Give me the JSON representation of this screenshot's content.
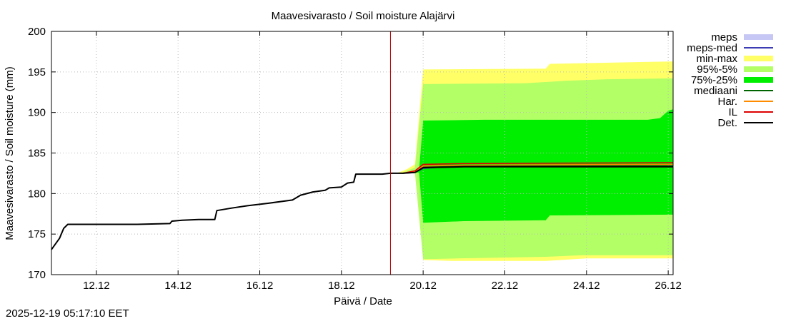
{
  "chart_data": {
    "type": "area",
    "title": "Maavesivarasto / Soil moisture   Alajärvi",
    "xlabel": "Päivä / Date",
    "ylabel": "Maavesivarasto / Soil moisture (mm)",
    "xlim": [
      10.9,
      26.12
    ],
    "ylim": [
      170,
      200
    ],
    "grid": true,
    "x_unit": "day of December 2025",
    "x_ticks": [
      {
        "x": 12,
        "label": "12.12"
      },
      {
        "x": 14,
        "label": "14.12"
      },
      {
        "x": 16,
        "label": "16.12"
      },
      {
        "x": 18,
        "label": "18.12"
      },
      {
        "x": 20,
        "label": "20.12"
      },
      {
        "x": 22,
        "label": "22.12"
      },
      {
        "x": 24,
        "label": "24.12"
      },
      {
        "x": 26,
        "label": "26.12"
      }
    ],
    "y_ticks": [
      170,
      175,
      180,
      185,
      190,
      195,
      200
    ],
    "current_time_marker_x": 19.2,
    "legend": [
      {
        "label": "meps",
        "color": "#c7c7f5",
        "style": "box"
      },
      {
        "label": "meps-med",
        "color": "#3c3cb4",
        "style": "line"
      },
      {
        "label": "min-max",
        "color": "#ffff66",
        "style": "box"
      },
      {
        "label": "95%-5%",
        "color": "#b2ff66",
        "style": "box"
      },
      {
        "label": "75%-25%",
        "color": "#00ee00",
        "style": "box"
      },
      {
        "label": "mediaani",
        "color": "#006400",
        "style": "line"
      },
      {
        "label": "Har.",
        "color": "#ff8c00",
        "style": "line"
      },
      {
        "label": "IL",
        "color": "#dd0000",
        "style": "line"
      },
      {
        "label": "Det.",
        "color": "#000000",
        "style": "line"
      }
    ],
    "series": [
      {
        "name": "Det.",
        "color": "#000000",
        "points": [
          [
            10.9,
            173.1
          ],
          [
            11.1,
            174.5
          ],
          [
            11.2,
            175.7
          ],
          [
            11.3,
            176.2
          ],
          [
            12.0,
            176.2
          ],
          [
            13.0,
            176.2
          ],
          [
            13.8,
            176.3
          ],
          [
            13.85,
            176.6
          ],
          [
            14.1,
            176.7
          ],
          [
            14.5,
            176.8
          ],
          [
            14.9,
            176.8
          ],
          [
            14.95,
            177.9
          ],
          [
            15.3,
            178.2
          ],
          [
            15.7,
            178.5
          ],
          [
            16.2,
            178.8
          ],
          [
            16.8,
            179.2
          ],
          [
            17.0,
            179.8
          ],
          [
            17.3,
            180.2
          ],
          [
            17.6,
            180.4
          ],
          [
            17.7,
            180.7
          ],
          [
            18.0,
            180.8
          ],
          [
            18.15,
            181.3
          ],
          [
            18.3,
            181.4
          ],
          [
            18.35,
            182.4
          ],
          [
            19.0,
            182.4
          ],
          [
            19.2,
            182.5
          ],
          [
            19.5,
            182.5
          ],
          [
            19.8,
            182.6
          ],
          [
            20.0,
            183.2
          ],
          [
            21.0,
            183.3
          ],
          [
            26.12,
            183.3
          ]
        ]
      },
      {
        "name": "IL",
        "color": "#dd0000",
        "points": [
          [
            19.5,
            182.5
          ],
          [
            19.8,
            182.8
          ],
          [
            20.0,
            183.6
          ],
          [
            21.0,
            183.7
          ],
          [
            26.12,
            183.8
          ]
        ]
      },
      {
        "name": "Har.",
        "color": "#ff8c00",
        "points": [
          [
            19.5,
            182.5
          ],
          [
            19.8,
            182.7
          ],
          [
            20.0,
            183.4
          ],
          [
            21.0,
            183.5
          ],
          [
            26.12,
            183.6
          ]
        ]
      },
      {
        "name": "mediaani",
        "color": "#006400",
        "points": [
          [
            19.5,
            182.5
          ],
          [
            19.8,
            182.7
          ],
          [
            20.0,
            183.3
          ],
          [
            21.0,
            183.4
          ],
          [
            26.12,
            183.5
          ]
        ]
      },
      {
        "name": "meps-med",
        "color": "#3c3cb4",
        "points": [
          [
            19.5,
            182.5
          ],
          [
            19.8,
            182.6
          ],
          [
            20.0,
            183.1
          ],
          [
            20.3,
            183.2
          ]
        ]
      }
    ],
    "bands": [
      {
        "name": "min-max",
        "color": "#ffff66",
        "upper": [
          [
            19.4,
            182.6
          ],
          [
            19.6,
            183.0
          ],
          [
            19.8,
            183.6
          ],
          [
            20.0,
            195.3
          ],
          [
            23.0,
            195.4
          ],
          [
            23.1,
            196.0
          ],
          [
            26.12,
            196.3
          ]
        ],
        "lower": [
          [
            19.4,
            182.5
          ],
          [
            19.6,
            182.5
          ],
          [
            19.8,
            182.6
          ],
          [
            20.0,
            171.8
          ],
          [
            20.7,
            171.7
          ],
          [
            23.0,
            171.7
          ],
          [
            24.0,
            172.0
          ],
          [
            26.12,
            172.0
          ]
        ]
      },
      {
        "name": "95%-5%",
        "color": "#b2ff66",
        "upper": [
          [
            19.5,
            182.6
          ],
          [
            19.8,
            183.2
          ],
          [
            20.0,
            193.5
          ],
          [
            22.5,
            193.6
          ],
          [
            23.5,
            193.9
          ],
          [
            24.5,
            194.1
          ],
          [
            26.12,
            194.2
          ]
        ],
        "lower": [
          [
            19.5,
            182.5
          ],
          [
            19.8,
            182.6
          ],
          [
            20.0,
            171.9
          ],
          [
            20.8,
            172.0
          ],
          [
            23.0,
            172.2
          ],
          [
            23.9,
            172.4
          ],
          [
            26.12,
            172.4
          ]
        ]
      },
      {
        "name": "75%-25%",
        "color": "#00ee00",
        "upper": [
          [
            19.6,
            182.6
          ],
          [
            19.9,
            183.0
          ],
          [
            20.0,
            189.0
          ],
          [
            21.5,
            189.1
          ],
          [
            25.5,
            189.1
          ],
          [
            25.8,
            189.3
          ],
          [
            26.0,
            190.2
          ],
          [
            26.12,
            190.4
          ]
        ],
        "lower": [
          [
            19.6,
            182.5
          ],
          [
            19.9,
            182.6
          ],
          [
            20.0,
            176.4
          ],
          [
            21.0,
            176.6
          ],
          [
            23.0,
            176.7
          ],
          [
            23.1,
            177.3
          ],
          [
            26.12,
            177.4
          ]
        ]
      }
    ]
  },
  "timestamp": "2025-12-19 05:17:10 EET"
}
